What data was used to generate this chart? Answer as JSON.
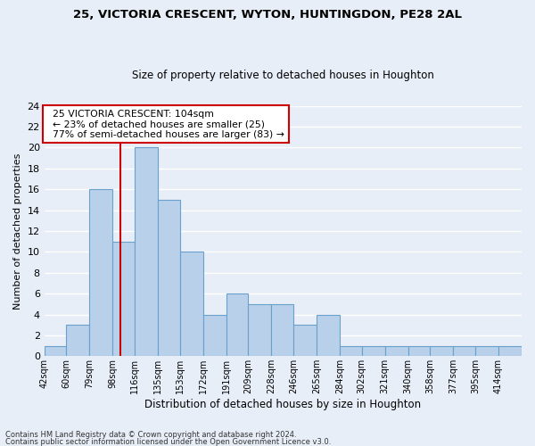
{
  "title1": "25, VICTORIA CRESCENT, WYTON, HUNTINGDON, PE28 2AL",
  "title2": "Size of property relative to detached houses in Houghton",
  "xlabel": "Distribution of detached houses by size in Houghton",
  "ylabel": "Number of detached properties",
  "bin_labels": [
    "42sqm",
    "60sqm",
    "79sqm",
    "98sqm",
    "116sqm",
    "135sqm",
    "153sqm",
    "172sqm",
    "191sqm",
    "209sqm",
    "228sqm",
    "246sqm",
    "265sqm",
    "284sqm",
    "302sqm",
    "321sqm",
    "340sqm",
    "358sqm",
    "377sqm",
    "395sqm",
    "414sqm"
  ],
  "bin_edges": [
    42,
    60,
    79,
    98,
    116,
    135,
    153,
    172,
    191,
    209,
    228,
    246,
    265,
    284,
    302,
    321,
    340,
    358,
    377,
    395,
    414
  ],
  "counts": [
    1,
    3,
    16,
    11,
    20,
    15,
    10,
    4,
    6,
    5,
    5,
    3,
    4,
    1,
    1,
    1,
    1,
    1,
    1,
    1,
    1
  ],
  "bar_color": "#b8d0ea",
  "bar_edge_color": "#6aa0cc",
  "vline_x": 104,
  "vline_color": "#cc0000",
  "annotation_text": "  25 VICTORIA CRESCENT: 104sqm\n  ← 23% of detached houses are smaller (25)\n  77% of semi-detached houses are larger (83) →",
  "annotation_box_color": "#ffffff",
  "annotation_box_edge": "#cc0000",
  "ylim": [
    0,
    24
  ],
  "yticks": [
    0,
    2,
    4,
    6,
    8,
    10,
    12,
    14,
    16,
    18,
    20,
    22,
    24
  ],
  "footer1": "Contains HM Land Registry data © Crown copyright and database right 2024.",
  "footer2": "Contains public sector information licensed under the Open Government Licence v3.0.",
  "bg_color": "#e8eef7",
  "grid_color": "#ffffff"
}
